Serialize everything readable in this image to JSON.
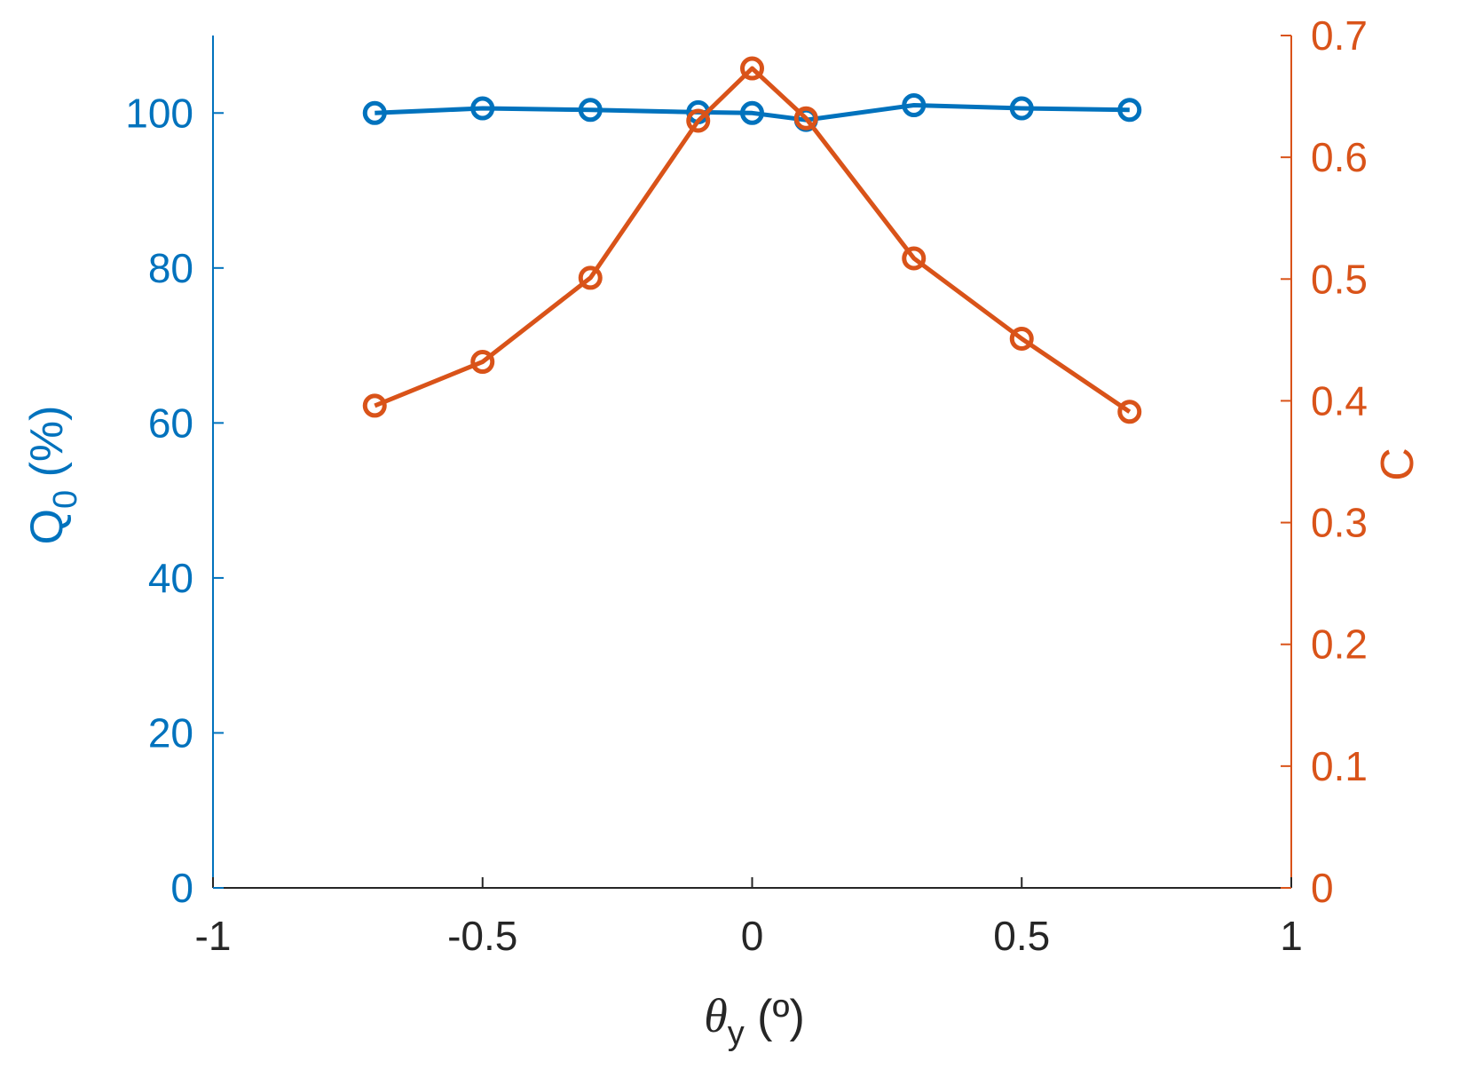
{
  "chart_data": {
    "type": "line",
    "x": [
      -0.7,
      -0.5,
      -0.3,
      -0.1,
      0,
      0.1,
      0.3,
      0.5,
      0.7
    ],
    "xlim": [
      -1,
      1
    ],
    "xticks": [
      "-1",
      "-0.5",
      "0",
      "0.5",
      "1"
    ],
    "xlabel": {
      "symbol": "θ",
      "sub": "y",
      "unit": " (º)"
    },
    "y_left": {
      "label": {
        "main": "Q",
        "sub": "0",
        "unit": " (%)"
      },
      "lim": [
        0,
        110
      ],
      "ticks": [
        "0",
        "20",
        "40",
        "60",
        "80",
        "100"
      ],
      "color": "#0072BD"
    },
    "y_right": {
      "label": {
        "main": "C"
      },
      "lim": [
        0,
        0.7
      ],
      "ticks": [
        "0",
        "0.1",
        "0.2",
        "0.3",
        "0.4",
        "0.5",
        "0.6",
        "0.7"
      ],
      "color": "#D95319"
    },
    "series": [
      {
        "axis": "left",
        "color": "#0072BD",
        "values": [
          100.0,
          100.6,
          100.4,
          100.1,
          100.0,
          99.1,
          101.0,
          100.6,
          100.4
        ]
      },
      {
        "axis": "right",
        "color": "#D95319",
        "values": [
          0.396,
          0.432,
          0.501,
          0.63,
          0.673,
          0.632,
          0.517,
          0.451,
          0.391
        ]
      }
    ],
    "grid": false,
    "legend": "none",
    "marker": "open-circle"
  }
}
